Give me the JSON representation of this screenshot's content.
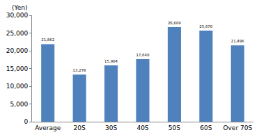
{
  "chart_data": {
    "type": "bar",
    "y_label": "(Yen)",
    "categories": [
      "Average",
      "20S",
      "30S",
      "40S",
      "50S",
      "60S",
      "Over 70S"
    ],
    "values": [
      21862,
      13278,
      15904,
      17640,
      26669,
      25670,
      21496
    ],
    "value_labels": [
      "21,862",
      "13,278",
      "15,904",
      "17,640",
      "26,669",
      "25,670",
      "21,496"
    ],
    "data_labels": true,
    "color": "#4f81bd",
    "ylim": [
      0,
      30000
    ],
    "yticks": [
      0,
      {
        "value": 5000,
        "label": "5,000"
      },
      {
        "value": 10000,
        "label": "10,000"
      },
      {
        "value": 15000,
        "label": "15,000"
      },
      {
        "value": 20000,
        "label": "20,000"
      },
      {
        "value": 25000,
        "label": "25,000"
      },
      {
        "value": 30000,
        "label": "30,000"
      }
    ],
    "grid": false
  }
}
